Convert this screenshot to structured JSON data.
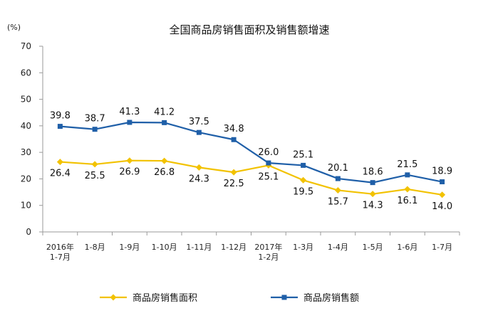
{
  "chart_data": {
    "type": "line",
    "title": "全国商品房销售面积及销售额增速",
    "unit_label": "(%)",
    "xlabel": "",
    "ylabel": "",
    "ylim": [
      0,
      70
    ],
    "yticks": [
      0,
      10,
      20,
      30,
      40,
      50,
      60,
      70
    ],
    "grid": false,
    "legend_position": "bottom",
    "categories": [
      [
        "2016年",
        "1-7月"
      ],
      [
        "1-8月"
      ],
      [
        "1-9月"
      ],
      [
        "1-10月"
      ],
      [
        "1-11月"
      ],
      [
        "1-12月"
      ],
      [
        "2017年",
        "1-2月"
      ],
      [
        "1-3月"
      ],
      [
        "1-4月"
      ],
      [
        "1-5月"
      ],
      [
        "1-6月"
      ],
      [
        "1-7月"
      ]
    ],
    "series": [
      {
        "name": "商品房销售面积",
        "color": "#f2c200",
        "marker": "diamond",
        "values": [
          26.4,
          25.5,
          26.9,
          26.8,
          24.3,
          22.5,
          25.1,
          19.5,
          15.7,
          14.3,
          16.1,
          14.0
        ],
        "labels": [
          "26.4",
          "25.5",
          "26.9",
          "26.8",
          "24.3",
          "22.5",
          "25.1",
          "19.5",
          "15.7",
          "14.3",
          "16.1",
          "14.0"
        ]
      },
      {
        "name": "商品房销售额",
        "color": "#1f5fa8",
        "marker": "square",
        "values": [
          39.8,
          38.7,
          41.3,
          41.2,
          37.5,
          34.8,
          26.0,
          25.1,
          20.1,
          18.6,
          21.5,
          18.9
        ],
        "labels": [
          "39.8",
          "38.7",
          "41.3",
          "41.2",
          "37.5",
          "34.8",
          "26.0",
          "25.1",
          "20.1",
          "18.6",
          "21.5",
          "18.9"
        ]
      }
    ]
  }
}
